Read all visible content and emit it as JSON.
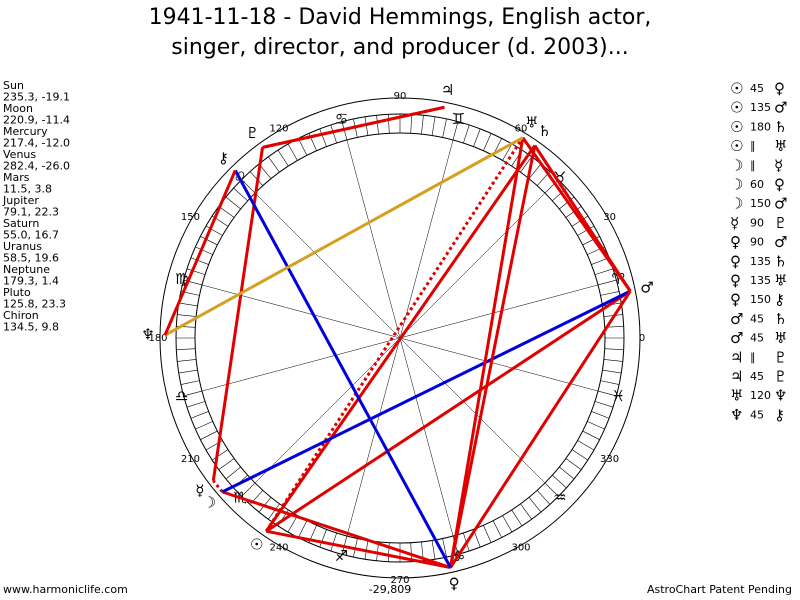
{
  "title": [
    "1941-11-18 - David Hemmings, English actor,",
    "singer, director, and producer (d. 2003)..."
  ],
  "planets": [
    {
      "name": "Sun",
      "glyph": "☉",
      "lon": 235.3,
      "label": "235.3, -19.1"
    },
    {
      "name": "Moon",
      "glyph": "☽",
      "lon": 220.9,
      "label": "220.9, -11.4"
    },
    {
      "name": "Mercury",
      "glyph": "☿",
      "lon": 217.4,
      "label": "217.4, -12.0"
    },
    {
      "name": "Venus",
      "glyph": "♀",
      "lon": 282.4,
      "label": "282.4, -26.0"
    },
    {
      "name": "Mars",
      "glyph": "♂",
      "lon": 11.5,
      "label": "11.5, 3.8"
    },
    {
      "name": "Jupiter",
      "glyph": "♃",
      "lon": 79.1,
      "label": "79.1, 22.3"
    },
    {
      "name": "Saturn",
      "glyph": "♄",
      "lon": 55.0,
      "label": "55.0, 16.7"
    },
    {
      "name": "Uranus",
      "glyph": "♅",
      "lon": 58.5,
      "label": "58.5, 19.6"
    },
    {
      "name": "Neptune",
      "glyph": "♆",
      "lon": 179.3,
      "label": "179.3, 1.4"
    },
    {
      "name": "Pluto",
      "glyph": "♇",
      "lon": 125.8,
      "label": "125.8, 23.3"
    },
    {
      "name": "Chiron",
      "glyph": "⚷",
      "lon": 134.5,
      "label": "134.5, 9.8"
    }
  ],
  "aspects": [
    {
      "from": 0,
      "label": "45",
      "to": 3,
      "color": "#e00000"
    },
    {
      "from": 0,
      "label": "135",
      "to": 4,
      "color": "#e00000"
    },
    {
      "from": 0,
      "label": "180",
      "to": 6,
      "color": "#e00000"
    },
    {
      "from": 0,
      "label": "∥",
      "to": 7,
      "color": "#e00000",
      "dashed": true
    },
    {
      "from": 1,
      "label": "∥",
      "to": 2,
      "color": "#e00000",
      "dashed": true
    },
    {
      "from": 1,
      "label": "60",
      "to": 3,
      "color": "#e00000"
    },
    {
      "from": 1,
      "label": "150",
      "to": 4,
      "color": "#0000dd"
    },
    {
      "from": 2,
      "label": "90",
      "to": 9,
      "color": "#e00000"
    },
    {
      "from": 3,
      "label": "90",
      "to": 4,
      "color": "#e00000"
    },
    {
      "from": 3,
      "label": "135",
      "to": 6,
      "color": "#e00000"
    },
    {
      "from": 3,
      "label": "135",
      "to": 7,
      "color": "#e00000"
    },
    {
      "from": 3,
      "label": "150",
      "to": 10,
      "color": "#0000dd"
    },
    {
      "from": 4,
      "label": "45",
      "to": 6,
      "color": "#e00000"
    },
    {
      "from": 4,
      "label": "45",
      "to": 7,
      "color": "#e00000"
    },
    {
      "from": 5,
      "label": "∥",
      "to": 9,
      "color": "#e00000",
      "dashed": true
    },
    {
      "from": 5,
      "label": "45",
      "to": 9,
      "color": "#e00000"
    },
    {
      "from": 7,
      "label": "120",
      "to": 8,
      "color": "#d4a020"
    },
    {
      "from": 8,
      "label": "45",
      "to": 10,
      "color": "#e00000"
    }
  ],
  "signs": [
    "♈",
    "♉",
    "♊",
    "♋",
    "♌",
    "♍",
    "♎",
    "♏",
    "♐",
    "♑",
    "♒",
    "♓"
  ],
  "degrees": [
    0,
    30,
    60,
    90,
    120,
    150,
    180,
    210,
    240,
    270,
    300,
    330
  ],
  "footer": {
    "left": "www.harmoniclife.com",
    "center": "-29,809",
    "right": "AstroChart Patent Pending"
  }
}
